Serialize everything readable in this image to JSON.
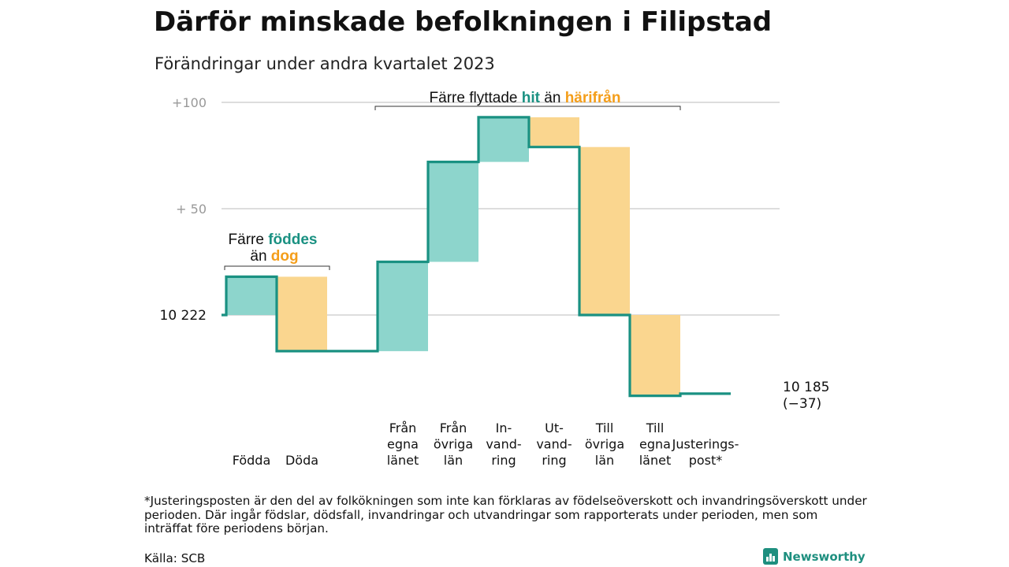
{
  "header": {
    "title": "Därför minskade befolkningen i Filipstad",
    "subtitle": "Förändringar under andra kvartalet 2023"
  },
  "colors": {
    "teal": "#1a9182",
    "teal_fill": "#8dd5cc",
    "orange": "#f49e1a",
    "orange_fill": "#fad68f",
    "grid": "#dddddd",
    "tick": "#999999"
  },
  "chart_data": {
    "type": "waterfall",
    "start_value": 10222,
    "end_value": 10185,
    "y_axis": {
      "ticks": [
        {
          "value": 100,
          "label": "+100"
        },
        {
          "value": 50,
          "label": "+  50"
        },
        {
          "value": 0,
          "label": "10  222"
        }
      ],
      "ylim": [
        -40,
        100
      ]
    },
    "steps": [
      {
        "label": [
          "Födda"
        ],
        "change": 18,
        "kind": "in"
      },
      {
        "label": [
          "Döda"
        ],
        "change": -35,
        "kind": "out"
      },
      {
        "label": [
          "Från",
          "egna",
          "länet"
        ],
        "change": 42,
        "kind": "in"
      },
      {
        "label": [
          "Från",
          "övriga",
          "län"
        ],
        "change": 47,
        "kind": "in"
      },
      {
        "label": [
          "In-",
          "vand-",
          "ring"
        ],
        "change": 21,
        "kind": "in"
      },
      {
        "label": [
          "Ut-",
          "vand-",
          "ring"
        ],
        "change": -14,
        "kind": "out"
      },
      {
        "label": [
          "Till",
          "övriga",
          "län"
        ],
        "change": -79,
        "kind": "out"
      },
      {
        "label": [
          "Till",
          "egna",
          "länet"
        ],
        "change": -38,
        "kind": "out"
      },
      {
        "label": [
          "Justerings-",
          "post*"
        ],
        "change": 1,
        "kind": "adjustment"
      }
    ],
    "end_label": [
      "10 185",
      "(−37)"
    ],
    "annotations": [
      {
        "id": "births",
        "parts": [
          [
            "Färre ",
            "plain"
          ],
          [
            "föddes",
            "teal"
          ]
        ],
        "parts2": [
          [
            "än ",
            "plain"
          ],
          [
            "dog",
            "orange"
          ]
        ]
      },
      {
        "id": "moves",
        "parts": [
          [
            "Färre flyttade ",
            "plain"
          ],
          [
            "hit",
            "teal"
          ],
          [
            " än ",
            "plain"
          ],
          [
            "härifrån",
            "orange"
          ]
        ]
      }
    ]
  },
  "footnote": "*Justeringsposten är den del av folkökningen som inte kan förklaras av födelseöverskott och invandringsöverskott under perioden. Där ingår födslar, dödsfall, invandringar och utvandringar som rapporterats under perioden, men som inträffat före periodens början.",
  "source": "Källa: SCB",
  "brand": "Newsworthy"
}
